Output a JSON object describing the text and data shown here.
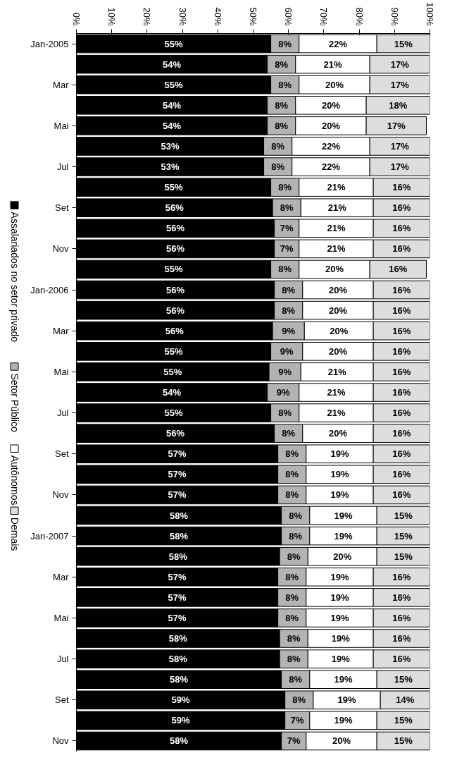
{
  "chart_data": {
    "type": "bar",
    "orientation": "horizontal",
    "stacked": true,
    "legend": "left",
    "grid": false,
    "categories": [
      "Jan-2005",
      null,
      "Mar",
      null,
      "Mai",
      null,
      "Jul",
      null,
      "Set",
      null,
      "Nov",
      null,
      "Jan-2006",
      null,
      "Mar",
      null,
      "Mai",
      null,
      "Jul",
      null,
      "Set",
      null,
      "Nov",
      null,
      "Jan-2007",
      null,
      "Mar",
      null,
      "Mai",
      null,
      "Jul",
      null,
      "Set",
      null,
      "Nov"
    ],
    "xlim": [
      0,
      100
    ],
    "xticks": [
      {
        "value": 0,
        "label": "0%"
      },
      {
        "value": 10,
        "label": "10%"
      },
      {
        "value": 20,
        "label": "20%"
      },
      {
        "value": 30,
        "label": "30%"
      },
      {
        "value": 40,
        "label": "40%"
      },
      {
        "value": 50,
        "label": "50%"
      },
      {
        "value": 60,
        "label": "60%"
      },
      {
        "value": 70,
        "label": "70%"
      },
      {
        "value": 80,
        "label": "80%"
      },
      {
        "value": 90,
        "label": "90%"
      },
      {
        "value": 100,
        "label": "100%"
      }
    ],
    "series": [
      {
        "name": "Assalariados no setor privado",
        "color": "#000000",
        "values": [
          55,
          54,
          55,
          54,
          54,
          53,
          53,
          55,
          55.5,
          56,
          56,
          55,
          56,
          56,
          55.5,
          55,
          54.5,
          54,
          55,
          56,
          57,
          57,
          57,
          58,
          58,
          57.5,
          57,
          57,
          57,
          57.5,
          57.5,
          58,
          59,
          59,
          58
        ],
        "value_labels": [
          "55%",
          "54%",
          "55%",
          "54%",
          "54%",
          "53%",
          "53%",
          "55%",
          "56%",
          "56%",
          "56%",
          "55%",
          "56%",
          "56%",
          "56%",
          "55%",
          "55%",
          "54%",
          "55%",
          "56%",
          "57%",
          "57%",
          "57%",
          "58%",
          "58%",
          "58%",
          "57%",
          "57%",
          "57%",
          "58%",
          "58%",
          "58%",
          "59%",
          "59%",
          "58%"
        ]
      },
      {
        "name": "Setor Público",
        "color": "#b3b3b3",
        "values": [
          8,
          8,
          8,
          8,
          8,
          8,
          8,
          8,
          8,
          7,
          7,
          8,
          8,
          8,
          9,
          9,
          9,
          9,
          8,
          8,
          8,
          8,
          8,
          8,
          8,
          8,
          8,
          8,
          8,
          8,
          8,
          8,
          8,
          7,
          7
        ],
        "value_labels": [
          "8%",
          "8%",
          "8%",
          "8%",
          "8%",
          "8%",
          "8%",
          "8%",
          "8%",
          "7%",
          "7%",
          "8%",
          "8%",
          "8%",
          "9%",
          "9%",
          "9%",
          "9%",
          "8%",
          "8%",
          "8%",
          "8%",
          "8%",
          "8%",
          "8%",
          "8%",
          "8%",
          "8%",
          "8%",
          "8%",
          "8%",
          "8%",
          "8%",
          "7%",
          "7%"
        ]
      },
      {
        "name": "Autônomos",
        "color": "#ffffff",
        "values": [
          22,
          21,
          20,
          20,
          20,
          22,
          22,
          21,
          20.5,
          21,
          21,
          20,
          20,
          20,
          19.5,
          20,
          20.5,
          21,
          21,
          20,
          19,
          19,
          19,
          19,
          19,
          19.5,
          19,
          19,
          19,
          18.5,
          18.5,
          19,
          19,
          19,
          20
        ],
        "value_labels": [
          "22%",
          "21%",
          "20%",
          "20%",
          "20%",
          "22%",
          "22%",
          "21%",
          "21%",
          "21%",
          "21%",
          "20%",
          "20%",
          "20%",
          "20%",
          "20%",
          "21%",
          "21%",
          "21%",
          "20%",
          "19%",
          "19%",
          "19%",
          "19%",
          "19%",
          "20%",
          "19%",
          "19%",
          "19%",
          "19%",
          "19%",
          "19%",
          "19%",
          "19%",
          "20%"
        ]
      },
      {
        "name": "Demais",
        "color": "#dddddd",
        "values": [
          15,
          17,
          17,
          18,
          17,
          17,
          17,
          16,
          16,
          16,
          16,
          16,
          16,
          16,
          16,
          16,
          16,
          16,
          16,
          16,
          16,
          16,
          16,
          15,
          15,
          15,
          16,
          16,
          16,
          16,
          16,
          15,
          14,
          15,
          15
        ],
        "value_labels": [
          "15%",
          "17%",
          "17%",
          "18%",
          "17%",
          "17%",
          "17%",
          "16%",
          "16%",
          "16%",
          "16%",
          "16%",
          "16%",
          "16%",
          "16%",
          "16%",
          "16%",
          "16%",
          "16%",
          "16%",
          "16%",
          "16%",
          "16%",
          "15%",
          "15%",
          "15%",
          "16%",
          "16%",
          "16%",
          "16%",
          "16%",
          "15%",
          "14%",
          "15%",
          "15%"
        ]
      }
    ]
  }
}
